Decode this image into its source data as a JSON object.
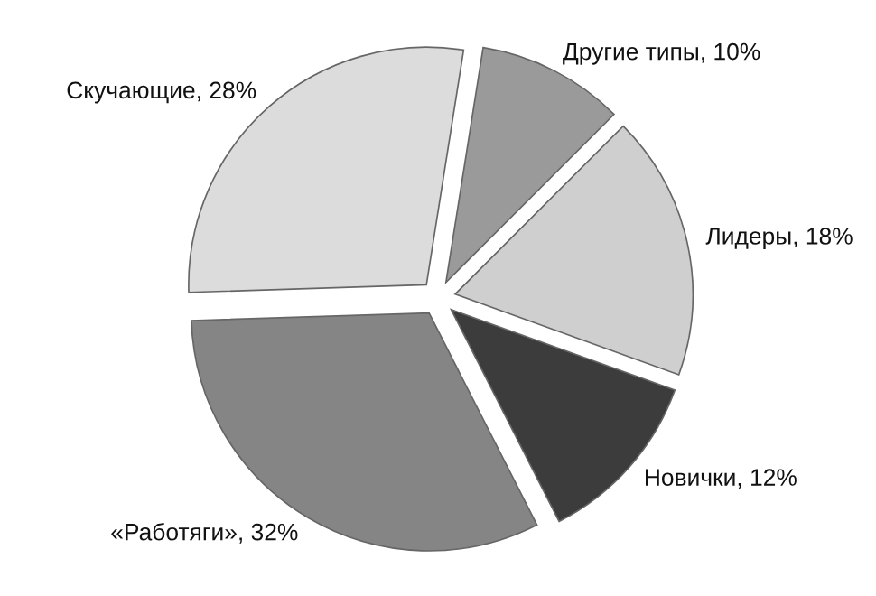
{
  "chart_data": {
    "type": "pie",
    "categories": [
      "Другие типы, 10%",
      "Лидеры, 18%",
      "Новички, 12%",
      "«Работяги», 32%",
      "Скучающие, 28%"
    ],
    "values": [
      10,
      18,
      12,
      32,
      28
    ],
    "colors": [
      "#9a9a9a",
      "#cfcfcf",
      "#3c3c3c",
      "#858585",
      "#dcdcdc"
    ],
    "legend": false
  }
}
